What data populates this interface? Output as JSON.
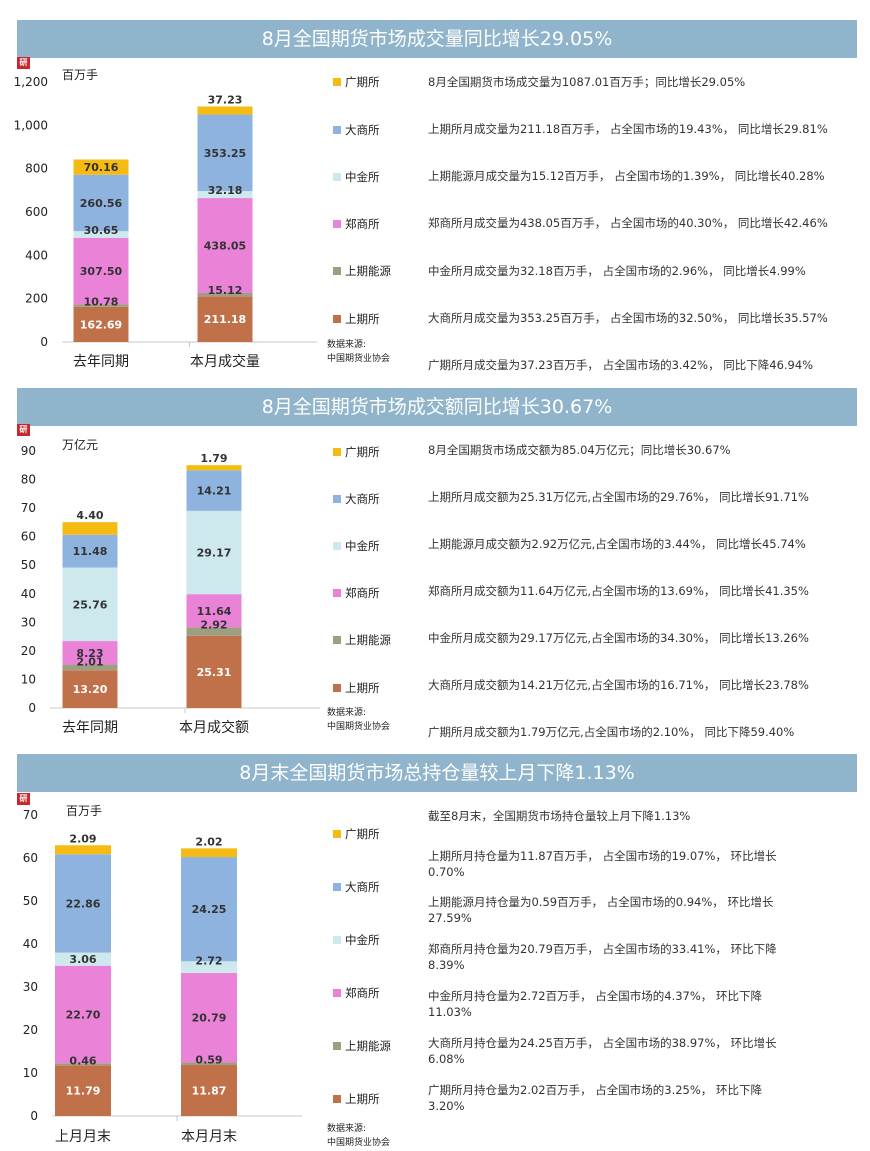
{
  "colors": {
    "banner": "#8fb4cc",
    "上期所": "#c0714a",
    "上期能源": "#9e9e82",
    "郑商所": "#ea82d8",
    "中金所": "#cde9ee",
    "大商所": "#8fb3df",
    "广期所": "#f5bb13"
  },
  "sections": [
    {
      "title": "8月全国期货市场成交量同比增长29.05%",
      "logo_text": "研",
      "unit": "百万手",
      "source_lines": [
        "数据来源:",
        "中国期货业协会"
      ],
      "legend": [
        "广期所",
        "大商所",
        "中金所",
        "郑商所",
        "上期能源",
        "上期所"
      ],
      "notes": [
        "8月全国期货市场成交量为1087.01百万手；同比增长29.05%",
        "上期所月成交量为211.18百万手， 占全国市场的19.43%， 同比增长29.81%",
        "上期能源月成交量为15.12百万手， 占全国市场的1.39%， 同比增长40.28%",
        "郑商所月成交量为438.05百万手， 占全国市场的40.30%， 同比增长42.46%",
        "中金所月成交量为32.18百万手， 占全国市场的2.96%， 同比增长4.99%",
        "大商所月成交量为353.25百万手， 占全国市场的32.50%， 同比增长35.57%",
        "广期所月成交量为37.23百万手， 占全国市场的3.42%， 同比下降46.94%"
      ]
    },
    {
      "title": "8月全国期货市场成交额同比增长30.67%",
      "logo_text": "研",
      "unit": "万亿元",
      "source_lines": [
        "数据来源:",
        "中国期货业协会"
      ],
      "legend": [
        "广期所",
        "大商所",
        "中金所",
        "郑商所",
        "上期能源",
        "上期所"
      ],
      "notes": [
        "8月全国期货市场成交额为85.04万亿元；同比增长30.67%",
        "上期所月成交额为25.31万亿元,占全国市场的29.76%， 同比增长91.71%",
        "上期能源月成交额为2.92万亿元,占全国市场的3.44%， 同比增长45.74%",
        "郑商所月成交额为11.64万亿元,占全国市场的13.69%， 同比增长41.35%",
        "中金所月成交额为29.17万亿元,占全国市场的34.30%， 同比增长13.26%",
        "大商所月成交额为14.21万亿元,占全国市场的16.71%， 同比增长23.78%",
        "广期所月成交额为1.79万亿元,占全国市场的2.10%， 同比下降59.40%"
      ]
    },
    {
      "title": "8月末全国期货市场总持仓量较上月下降1.13%",
      "logo_text": "研",
      "unit": "百万手",
      "source_lines": [
        "数据来源:",
        "中国期货业协会"
      ],
      "legend": [
        "广期所",
        "大商所",
        "中金所",
        "郑商所",
        "上期能源",
        "上期所"
      ],
      "notes": [
        "截至8月末，全国期货市场持仓量较上月下降1.13%",
        "上期所月持仓量为11.87百万手， 占全国市场的19.07%， 环比增长0.70%",
        "上期能源月持仓量为0.59百万手， 占全国市场的0.94%， 环比增长27.59%",
        "郑商所月持仓量为20.79百万手， 占全国市场的33.41%， 环比下降8.39%",
        "中金所月持仓量为2.72百万手， 占全国市场的4.37%， 环比下降11.03%",
        "大商所月持仓量为24.25百万手， 占全国市场的38.97%， 环比增长6.08%",
        "广期所月持仓量为2.02百万手， 占全国市场的3.25%， 环比下降3.20%"
      ]
    }
  ],
  "chart_data": [
    {
      "type": "bar",
      "stacked": true,
      "ylabel": "百万手",
      "ylim": [
        0,
        1200
      ],
      "yticks": [
        0,
        200,
        400,
        600,
        800,
        1000,
        1200
      ],
      "ytick_labels": [
        "0",
        "200",
        "400",
        "600",
        "800",
        "1,000",
        "1,200"
      ],
      "categories": [
        "去年同期",
        "本月成交量"
      ],
      "legend_position": "right",
      "series": [
        {
          "name": "上期所",
          "values": [
            162.69,
            211.18
          ],
          "labels": [
            "162.69",
            "211.18"
          ]
        },
        {
          "name": "上期能源",
          "values": [
            10.78,
            15.12
          ],
          "labels": [
            "10.78",
            "15.12"
          ]
        },
        {
          "name": "郑商所",
          "values": [
            307.5,
            438.05
          ],
          "labels": [
            "307.50",
            "438.05"
          ]
        },
        {
          "name": "中金所",
          "values": [
            30.65,
            32.18
          ],
          "labels": [
            "30.65",
            "32.18"
          ]
        },
        {
          "name": "大商所",
          "values": [
            260.56,
            353.25
          ],
          "labels": [
            "260.56",
            "353.25"
          ]
        },
        {
          "name": "广期所",
          "values": [
            70.16,
            37.23
          ],
          "labels": [
            "70.16",
            "37.23"
          ]
        }
      ]
    },
    {
      "type": "bar",
      "stacked": true,
      "ylabel": "万亿元",
      "ylim": [
        0,
        90
      ],
      "yticks": [
        0,
        10,
        20,
        30,
        40,
        50,
        60,
        70,
        80,
        90
      ],
      "ytick_labels": [
        "0",
        "10",
        "20",
        "30",
        "40",
        "50",
        "60",
        "70",
        "80",
        "90"
      ],
      "categories": [
        "去年同期",
        "本月成交额"
      ],
      "legend_position": "right",
      "series": [
        {
          "name": "上期所",
          "values": [
            13.2,
            25.31
          ],
          "labels": [
            "13.20",
            "25.31"
          ]
        },
        {
          "name": "上期能源",
          "values": [
            2.01,
            2.92
          ],
          "labels": [
            "2.01",
            "2.92"
          ]
        },
        {
          "name": "郑商所",
          "values": [
            8.23,
            11.64
          ],
          "labels": [
            "8.23",
            "11.64"
          ]
        },
        {
          "name": "中金所",
          "values": [
            25.76,
            29.17
          ],
          "labels": [
            "25.76",
            "29.17"
          ]
        },
        {
          "name": "大商所",
          "values": [
            11.48,
            14.21
          ],
          "labels": [
            "11.48",
            "14.21"
          ]
        },
        {
          "name": "广期所",
          "values": [
            4.4,
            1.79
          ],
          "labels": [
            "4.40",
            "1.79"
          ]
        }
      ]
    },
    {
      "type": "bar",
      "stacked": true,
      "ylabel": "百万手",
      "ylim": [
        0,
        70
      ],
      "yticks": [
        0,
        10,
        20,
        30,
        40,
        50,
        60,
        70
      ],
      "ytick_labels": [
        "0",
        "10",
        "20",
        "30",
        "40",
        "50",
        "60",
        "70"
      ],
      "categories": [
        "上月月末",
        "本月月末"
      ],
      "legend_position": "right",
      "series": [
        {
          "name": "上期所",
          "values": [
            11.79,
            11.87
          ],
          "labels": [
            "11.79",
            "11.87"
          ]
        },
        {
          "name": "上期能源",
          "values": [
            0.46,
            0.59
          ],
          "labels": [
            "0.46",
            "0.59"
          ]
        },
        {
          "name": "郑商所",
          "values": [
            22.7,
            20.79
          ],
          "labels": [
            "22.70",
            "20.79"
          ]
        },
        {
          "name": "中金所",
          "values": [
            3.06,
            2.72
          ],
          "labels": [
            "3.06",
            "2.72"
          ]
        },
        {
          "name": "大商所",
          "values": [
            22.86,
            24.25
          ],
          "labels": [
            "22.86",
            "24.25"
          ]
        },
        {
          "name": "广期所",
          "values": [
            2.09,
            2.02
          ],
          "labels": [
            "2.09",
            "2.02"
          ]
        }
      ]
    }
  ]
}
